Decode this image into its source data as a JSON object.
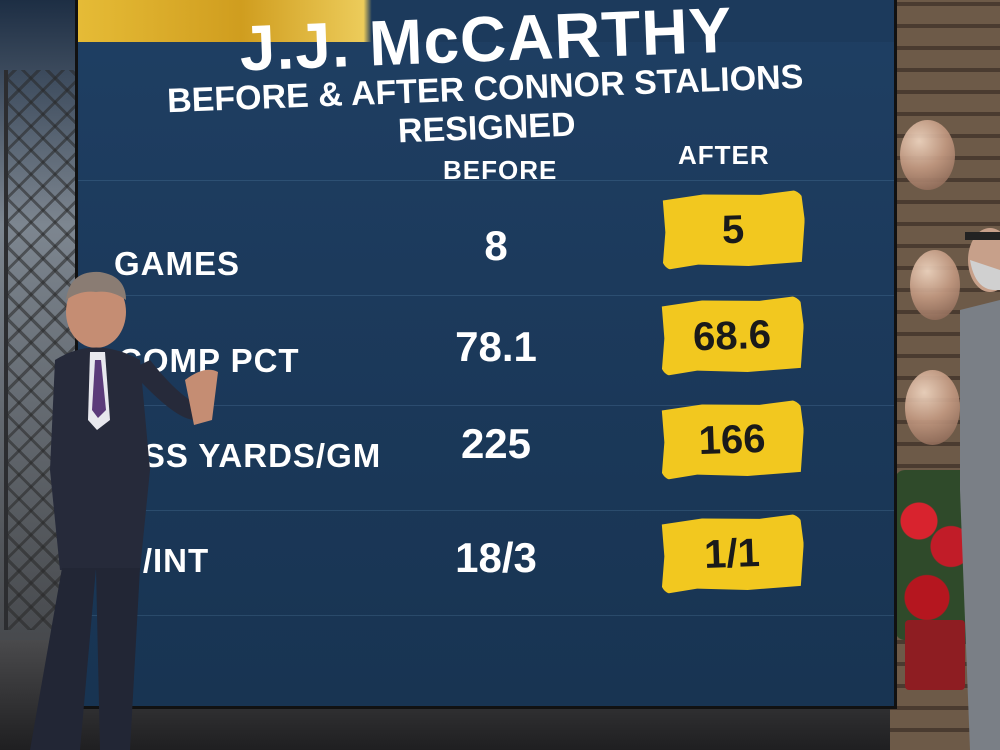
{
  "graphic": {
    "title": "J.J. McCARTHY",
    "subtitle": "BEFORE & AFTER CONNOR STALIONS RESIGNED",
    "columns": {
      "before": "BEFORE",
      "after": "AFTER"
    },
    "rows": [
      {
        "label": "GAMES",
        "before": "8",
        "after": "5"
      },
      {
        "label": "COMP PCT",
        "before": "78.1",
        "after": "68.6"
      },
      {
        "label": "ASS YARDS/GM",
        "before": "225",
        "after": "166"
      },
      {
        "label": "D/INT",
        "before": "18/3",
        "after": "1/1"
      }
    ],
    "colors": {
      "screen": "#1c3a5c",
      "highlight": "#f2c81f",
      "text": "#ffffff"
    }
  }
}
